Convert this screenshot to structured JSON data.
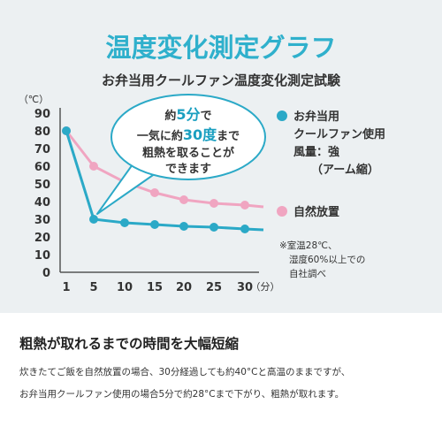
{
  "chart_data": {
    "type": "line",
    "title": "温度変化測定グラフ",
    "subtitle": "お弁当用クールファン温度変化測定試験",
    "y_unit_label": "（℃）",
    "x_unit_label": "（分）",
    "x": [
      1,
      5,
      10,
      15,
      20,
      25,
      30
    ],
    "x_tick_labels": [
      "1",
      "5",
      "10",
      "15",
      "20",
      "25",
      "30"
    ],
    "ylim": [
      0,
      90
    ],
    "y_ticks": [
      "0",
      "10",
      "20",
      "30",
      "40",
      "50",
      "60",
      "70",
      "80",
      "90"
    ],
    "grid": false,
    "legend_position": "right",
    "series": [
      {
        "name": "お弁当用クールファン使用",
        "legend_lines": [
          "お弁当用",
          "クールファン使用",
          "風量：強",
          "（アーム縮）"
        ],
        "color": "#2ba9c7",
        "values": [
          80,
          30,
          28,
          27,
          26,
          25.5,
          24.5,
          24
        ],
        "x_values": [
          1,
          5,
          10,
          15,
          20,
          25,
          30,
          33
        ]
      },
      {
        "name": "自然放置",
        "legend_lines": [
          "自然放置"
        ],
        "color": "#f0a5c1",
        "values": [
          80,
          60,
          51,
          45,
          41,
          39,
          38,
          37
        ],
        "x_values": [
          1,
          5,
          10,
          15,
          20,
          25,
          30,
          33
        ]
      }
    ],
    "annotations": {
      "callout_lines": [
        {
          "parts": [
            "約",
            "5分",
            "で"
          ]
        },
        {
          "parts": [
            "一気に約",
            "30度",
            "まで"
          ]
        },
        {
          "parts": [
            "粗熱を取ることが"
          ]
        },
        {
          "parts": [
            "できます"
          ]
        }
      ],
      "note_lines": [
        "※室温28℃、",
        "湿度60%以上での",
        "自社調べ"
      ]
    }
  },
  "caption": {
    "heading": "粗熱が取れるまでの時間を大幅短縮",
    "lines": [
      "炊きたてご飯を自然放置の場合、30分経過しても約40°Cと高温のままですが、",
      "お弁当用クールファン使用の場合5分で約28°Cまで下がり、粗熱が取れます。"
    ]
  },
  "colors": {
    "accent": "#2fb0cc",
    "fan_series": "#2ba9c7",
    "natural_series": "#f0a5c1",
    "panel_bg": "#ecf0f2"
  }
}
